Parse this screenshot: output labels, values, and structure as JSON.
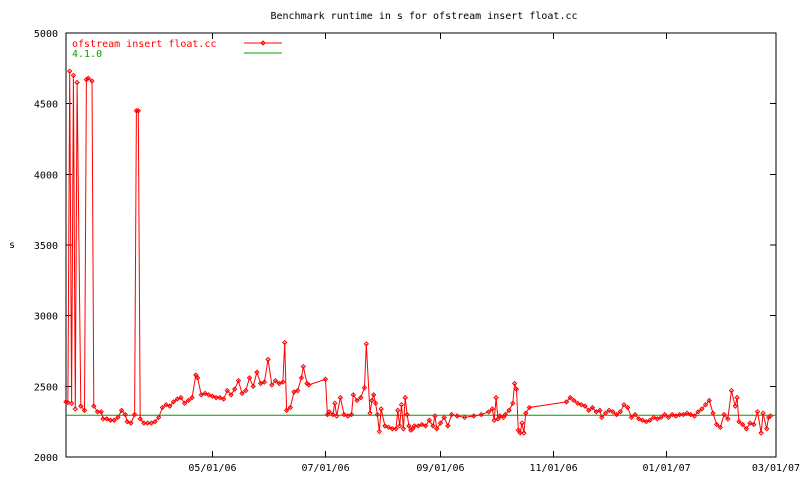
{
  "chart_data": {
    "type": "line",
    "title": "Benchmark runtime in s for ofstream insert float.cc",
    "xlabel": "",
    "ylabel": "s",
    "ylim": [
      2000,
      5000
    ],
    "xlim": [
      "2006-02-11",
      "2007-03-01"
    ],
    "yticks": [
      "2000",
      "2500",
      "3000",
      "3500",
      "4000",
      "4500",
      "5000"
    ],
    "xticks": [
      {
        "date": "2006-05-01",
        "label": "05/01/06"
      },
      {
        "date": "2006-07-01",
        "label": "07/01/06"
      },
      {
        "date": "2006-09-01",
        "label": "09/01/06"
      },
      {
        "date": "2006-11-01",
        "label": "11/01/06"
      },
      {
        "date": "2007-01-01",
        "label": "01/01/07"
      },
      {
        "date": "2007-03-01",
        "label": "03/01/07"
      }
    ],
    "grid": false,
    "legend_position": "top-left",
    "colors": {
      "series": "#ff0000",
      "baseline": "#00a000"
    },
    "series": [
      {
        "name": "ofstream insert float.cc",
        "points": [
          [
            "2006-02-11",
            2390
          ],
          [
            "2006-02-12",
            2385
          ],
          [
            "2006-02-13",
            4730
          ],
          [
            "2006-02-14",
            2380
          ],
          [
            "2006-02-15",
            4700
          ],
          [
            "2006-02-16",
            2340
          ],
          [
            "2006-02-17",
            4650
          ],
          [
            "2006-02-19",
            2360
          ],
          [
            "2006-02-21",
            2330
          ],
          [
            "2006-02-22",
            4670
          ],
          [
            "2006-02-23",
            4680
          ],
          [
            "2006-02-25",
            4660
          ],
          [
            "2006-02-26",
            2360
          ],
          [
            "2006-02-28",
            2320
          ],
          [
            "2006-03-02",
            2320
          ],
          [
            "2006-03-03",
            2270
          ],
          [
            "2006-03-05",
            2270
          ],
          [
            "2006-03-07",
            2260
          ],
          [
            "2006-03-09",
            2260
          ],
          [
            "2006-03-11",
            2280
          ],
          [
            "2006-03-13",
            2330
          ],
          [
            "2006-03-15",
            2300
          ],
          [
            "2006-03-16",
            2250
          ],
          [
            "2006-03-18",
            2240
          ],
          [
            "2006-03-20",
            2300
          ],
          [
            "2006-03-21",
            4450
          ],
          [
            "2006-03-22",
            4450
          ],
          [
            "2006-03-23",
            2270
          ],
          [
            "2006-03-25",
            2240
          ],
          [
            "2006-03-27",
            2240
          ],
          [
            "2006-03-29",
            2240
          ],
          [
            "2006-03-31",
            2250
          ],
          [
            "2006-04-02",
            2280
          ],
          [
            "2006-04-04",
            2350
          ],
          [
            "2006-04-06",
            2370
          ],
          [
            "2006-04-08",
            2360
          ],
          [
            "2006-04-10",
            2390
          ],
          [
            "2006-04-12",
            2410
          ],
          [
            "2006-04-14",
            2420
          ],
          [
            "2006-04-16",
            2380
          ],
          [
            "2006-04-18",
            2400
          ],
          [
            "2006-04-20",
            2420
          ],
          [
            "2006-04-22",
            2580
          ],
          [
            "2006-04-23",
            2560
          ],
          [
            "2006-04-25",
            2440
          ],
          [
            "2006-04-27",
            2450
          ],
          [
            "2006-04-29",
            2440
          ],
          [
            "2006-05-01",
            2430
          ],
          [
            "2006-05-03",
            2420
          ],
          [
            "2006-05-05",
            2420
          ],
          [
            "2006-05-07",
            2410
          ],
          [
            "2006-05-09",
            2470
          ],
          [
            "2006-05-11",
            2440
          ],
          [
            "2006-05-13",
            2480
          ],
          [
            "2006-05-15",
            2540
          ],
          [
            "2006-05-17",
            2450
          ],
          [
            "2006-05-19",
            2470
          ],
          [
            "2006-05-21",
            2560
          ],
          [
            "2006-05-23",
            2500
          ],
          [
            "2006-05-25",
            2600
          ],
          [
            "2006-05-27",
            2520
          ],
          [
            "2006-05-29",
            2530
          ],
          [
            "2006-05-31",
            2690
          ],
          [
            "2006-06-02",
            2510
          ],
          [
            "2006-06-04",
            2540
          ],
          [
            "2006-06-06",
            2520
          ],
          [
            "2006-06-08",
            2530
          ],
          [
            "2006-06-09",
            2810
          ],
          [
            "2006-06-10",
            2330
          ],
          [
            "2006-06-12",
            2350
          ],
          [
            "2006-06-14",
            2460
          ],
          [
            "2006-06-16",
            2470
          ],
          [
            "2006-06-18",
            2560
          ],
          [
            "2006-06-19",
            2640
          ],
          [
            "2006-06-21",
            2520
          ],
          [
            "2006-06-22",
            2510
          ],
          [
            "2006-07-01",
            2550
          ],
          [
            "2006-07-02",
            2300
          ],
          [
            "2006-07-03",
            2320
          ],
          [
            "2006-07-05",
            2300
          ],
          [
            "2006-07-06",
            2380
          ],
          [
            "2006-07-07",
            2290
          ],
          [
            "2006-07-09",
            2420
          ],
          [
            "2006-07-11",
            2300
          ],
          [
            "2006-07-13",
            2290
          ],
          [
            "2006-07-15",
            2300
          ],
          [
            "2006-07-16",
            2440
          ],
          [
            "2006-07-18",
            2400
          ],
          [
            "2006-07-20",
            2420
          ],
          [
            "2006-07-22",
            2490
          ],
          [
            "2006-07-23",
            2800
          ],
          [
            "2006-07-25",
            2310
          ],
          [
            "2006-07-26",
            2400
          ],
          [
            "2006-07-27",
            2440
          ],
          [
            "2006-07-28",
            2380
          ],
          [
            "2006-07-29",
            2300
          ],
          [
            "2006-07-30",
            2180
          ],
          [
            "2006-07-31",
            2340
          ],
          [
            "2006-08-02",
            2220
          ],
          [
            "2006-08-04",
            2210
          ],
          [
            "2006-08-06",
            2200
          ],
          [
            "2006-08-08",
            2200
          ],
          [
            "2006-08-09",
            2330
          ],
          [
            "2006-08-10",
            2220
          ],
          [
            "2006-08-11",
            2370
          ],
          [
            "2006-08-12",
            2200
          ],
          [
            "2006-08-13",
            2420
          ],
          [
            "2006-08-14",
            2300
          ],
          [
            "2006-08-15",
            2220
          ],
          [
            "2006-08-16",
            2190
          ],
          [
            "2006-08-17",
            2200
          ],
          [
            "2006-08-18",
            2220
          ],
          [
            "2006-08-20",
            2220
          ],
          [
            "2006-08-22",
            2230
          ],
          [
            "2006-08-24",
            2220
          ],
          [
            "2006-08-26",
            2260
          ],
          [
            "2006-08-28",
            2220
          ],
          [
            "2006-08-29",
            2290
          ],
          [
            "2006-08-30",
            2200
          ],
          [
            "2006-09-01",
            2240
          ],
          [
            "2006-09-03",
            2280
          ],
          [
            "2006-09-05",
            2220
          ],
          [
            "2006-09-07",
            2300
          ],
          [
            "2006-09-10",
            2290
          ],
          [
            "2006-09-14",
            2280
          ],
          [
            "2006-09-19",
            2290
          ],
          [
            "2006-09-23",
            2300
          ],
          [
            "2006-09-27",
            2320
          ],
          [
            "2006-09-29",
            2340
          ],
          [
            "2006-09-30",
            2260
          ],
          [
            "2006-10-01",
            2420
          ],
          [
            "2006-10-02",
            2270
          ],
          [
            "2006-10-03",
            2290
          ],
          [
            "2006-10-05",
            2280
          ],
          [
            "2006-10-06",
            2300
          ],
          [
            "2006-10-08",
            2330
          ],
          [
            "2006-10-10",
            2380
          ],
          [
            "2006-10-11",
            2520
          ],
          [
            "2006-10-12",
            2480
          ],
          [
            "2006-10-13",
            2190
          ],
          [
            "2006-10-14",
            2170
          ],
          [
            "2006-10-15",
            2240
          ],
          [
            "2006-10-16",
            2170
          ],
          [
            "2006-10-17",
            2310
          ],
          [
            "2006-10-19",
            2350
          ],
          [
            "2006-11-08",
            2390
          ],
          [
            "2006-11-10",
            2420
          ],
          [
            "2006-11-12",
            2400
          ],
          [
            "2006-11-14",
            2380
          ],
          [
            "2006-11-16",
            2370
          ],
          [
            "2006-11-18",
            2360
          ],
          [
            "2006-11-20",
            2330
          ],
          [
            "2006-11-22",
            2350
          ],
          [
            "2006-11-24",
            2320
          ],
          [
            "2006-11-26",
            2330
          ],
          [
            "2006-11-27",
            2280
          ],
          [
            "2006-11-29",
            2310
          ],
          [
            "2006-12-01",
            2330
          ],
          [
            "2006-12-03",
            2320
          ],
          [
            "2006-12-05",
            2300
          ],
          [
            "2006-12-07",
            2320
          ],
          [
            "2006-12-09",
            2370
          ],
          [
            "2006-12-11",
            2350
          ],
          [
            "2006-12-13",
            2280
          ],
          [
            "2006-12-15",
            2300
          ],
          [
            "2006-12-17",
            2270
          ],
          [
            "2006-12-19",
            2260
          ],
          [
            "2006-12-21",
            2250
          ],
          [
            "2006-12-23",
            2260
          ],
          [
            "2006-12-25",
            2280
          ],
          [
            "2006-12-27",
            2270
          ],
          [
            "2006-12-29",
            2280
          ],
          [
            "2006-12-31",
            2300
          ],
          [
            "2007-01-02",
            2280
          ],
          [
            "2007-01-04",
            2300
          ],
          [
            "2007-01-06",
            2290
          ],
          [
            "2007-01-08",
            2300
          ],
          [
            "2007-01-10",
            2300
          ],
          [
            "2007-01-12",
            2310
          ],
          [
            "2007-01-14",
            2300
          ],
          [
            "2007-01-16",
            2290
          ],
          [
            "2007-01-18",
            2320
          ],
          [
            "2007-01-20",
            2340
          ],
          [
            "2007-01-22",
            2370
          ],
          [
            "2007-01-24",
            2400
          ],
          [
            "2007-01-26",
            2310
          ],
          [
            "2007-01-28",
            2230
          ],
          [
            "2007-01-30",
            2210
          ],
          [
            "2007-02-01",
            2300
          ],
          [
            "2007-02-03",
            2270
          ],
          [
            "2007-02-05",
            2470
          ],
          [
            "2007-02-07",
            2360
          ],
          [
            "2007-02-08",
            2420
          ],
          [
            "2007-02-09",
            2250
          ],
          [
            "2007-02-11",
            2230
          ],
          [
            "2007-02-13",
            2200
          ],
          [
            "2007-02-15",
            2240
          ],
          [
            "2007-02-17",
            2230
          ],
          [
            "2007-02-19",
            2320
          ],
          [
            "2007-02-21",
            2170
          ],
          [
            "2007-02-22",
            2310
          ],
          [
            "2007-02-24",
            2200
          ],
          [
            "2007-02-25",
            2280
          ],
          [
            "2007-02-26",
            2290
          ]
        ]
      },
      {
        "name": "4.1.0",
        "constant": 2295
      }
    ]
  }
}
